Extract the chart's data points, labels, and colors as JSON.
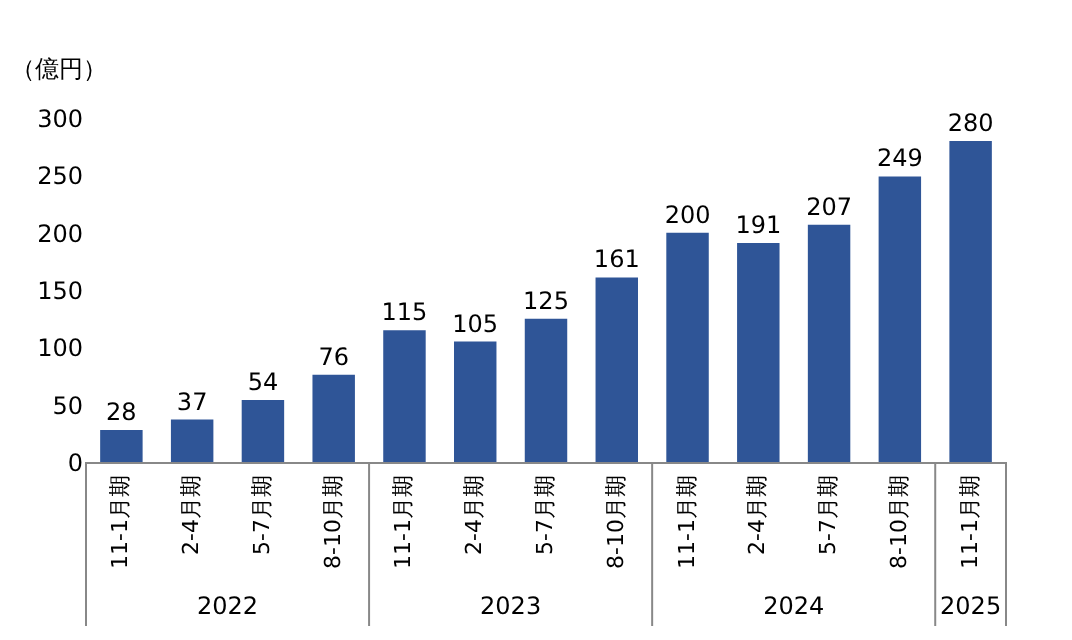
{
  "chart_data": {
    "type": "bar",
    "ylabel": "（億円）",
    "categories": [
      "11-1月期",
      "2-4月期",
      "5-7月期",
      "8-10月期",
      "11-1月期",
      "2-4月期",
      "5-7月期",
      "8-10月期",
      "11-1月期",
      "2-4月期",
      "5-7月期",
      "8-10月期",
      "11-1月期"
    ],
    "values": [
      28,
      37,
      54,
      76,
      115,
      105,
      125,
      161,
      200,
      191,
      207,
      249,
      280
    ],
    "color": "#2f5597",
    "ylim": [
      0,
      300
    ],
    "yticks": [
      0,
      50,
      100,
      150,
      200,
      250,
      300
    ],
    "data_labels": true,
    "grid": false,
    "annotations": [
      "2022",
      "2023",
      "2024",
      "2025"
    ]
  }
}
